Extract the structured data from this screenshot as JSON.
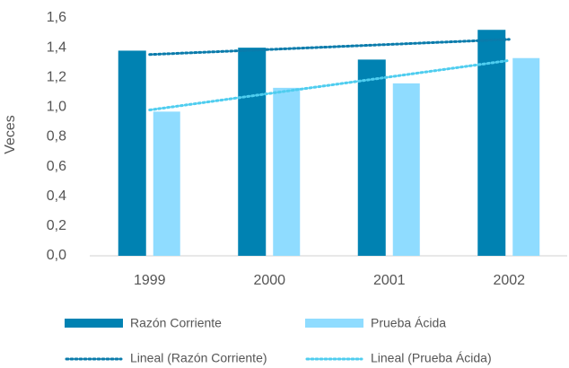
{
  "chart_data": {
    "type": "bar",
    "ylabel": "Veces",
    "categories": [
      "1999",
      "2000",
      "2001",
      "2002"
    ],
    "series": [
      {
        "name": "Razón Corriente",
        "color": "#0082b2",
        "values": [
          1.38,
          1.4,
          1.32,
          1.52
        ]
      },
      {
        "name": "Prueba Ácida",
        "color": "#8fdcff",
        "values": [
          0.97,
          1.13,
          1.16,
          1.33
        ]
      }
    ],
    "trendlines": [
      {
        "name": "Lineal (Razón Corriente)",
        "color": "#0a7bab",
        "values": [
          1.354,
          1.388,
          1.422,
          1.456
        ]
      },
      {
        "name": "Lineal (Prueba Ácida)",
        "color": "#4fcdef",
        "values": [
          0.981,
          1.092,
          1.203,
          1.314
        ]
      }
    ],
    "ylim": [
      0,
      1.6
    ],
    "yticks": [
      {
        "value": 0,
        "label": "0,0"
      },
      {
        "value": 0.2,
        "label": "0,2"
      },
      {
        "value": 0.4,
        "label": "0,4"
      },
      {
        "value": 0.6,
        "label": "0,6"
      },
      {
        "value": 0.8,
        "label": "0,8"
      },
      {
        "value": 1.0,
        "label": "1,0"
      },
      {
        "value": 1.2,
        "label": "1,2"
      },
      {
        "value": 1.4,
        "label": "1,4"
      },
      {
        "value": 1.6,
        "label": "1,6"
      }
    ],
    "grid": false
  }
}
